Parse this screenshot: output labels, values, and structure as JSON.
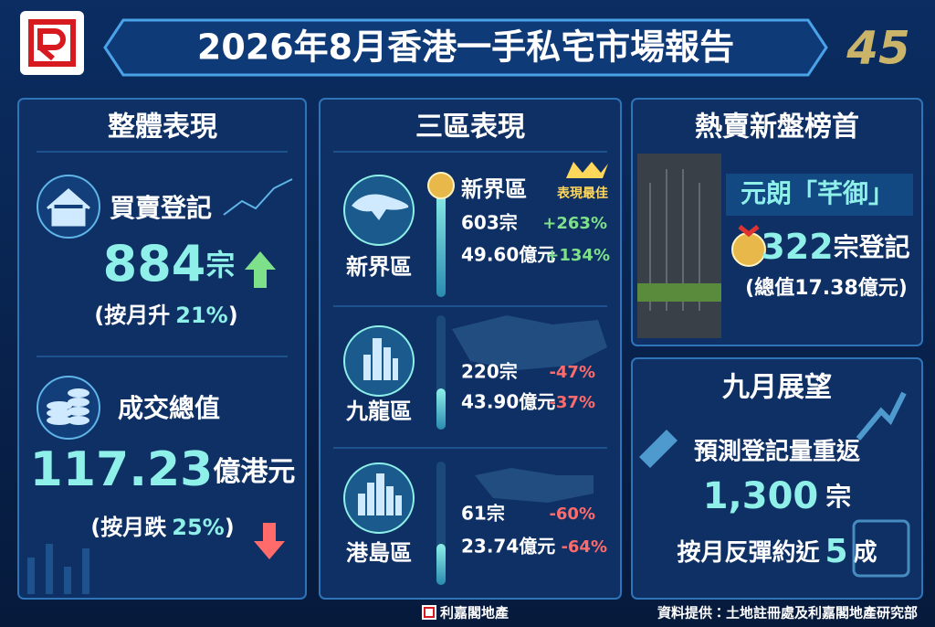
{
  "header": {
    "title": "2026年8月香港一手私宅市場報告",
    "anniversary": "45"
  },
  "overall": {
    "title": "整體表現",
    "items": [
      {
        "label": "買賣登記",
        "value": "884",
        "unit": "宗",
        "change_prefix": "(按月升",
        "change": "21%",
        "change_suffix": ")"
      },
      {
        "label": "成交總值",
        "value": "117.23",
        "unit": "億港元",
        "change_prefix": "(按月跌",
        "change": "25%",
        "change_suffix": ")"
      }
    ]
  },
  "districts": {
    "title": "三區表現",
    "best_label": "表現最佳",
    "rows": [
      {
        "name": "新界區",
        "units": "603宗",
        "units_change": "+263%",
        "amount": "49.60億元",
        "amount_change": "+134%"
      },
      {
        "name": "九龍區",
        "units": "220宗",
        "units_change": "-47%",
        "amount": "43.90億元",
        "amount_change": "-37%"
      },
      {
        "name": "港島區",
        "units": "61宗",
        "units_change": "-60%",
        "amount": "23.74億元",
        "amount_change": "-64%"
      }
    ]
  },
  "hot": {
    "title": "熱賣新盤榜首",
    "project": "元朗「芊御」",
    "units": "322",
    "units_label": "宗登記",
    "total": "(總值17.38億元)"
  },
  "outlook": {
    "title": "九月展望",
    "line1": "預測登記量重返",
    "forecast": "1,300",
    "forecast_unit": "宗",
    "line2_prefix": "按月反彈約近",
    "rebound": "5",
    "rebound_unit": "成"
  },
  "footer": {
    "brand": "利嘉閣地產",
    "source": "資料提供：土地註冊處及利嘉閣地產研究部"
  }
}
